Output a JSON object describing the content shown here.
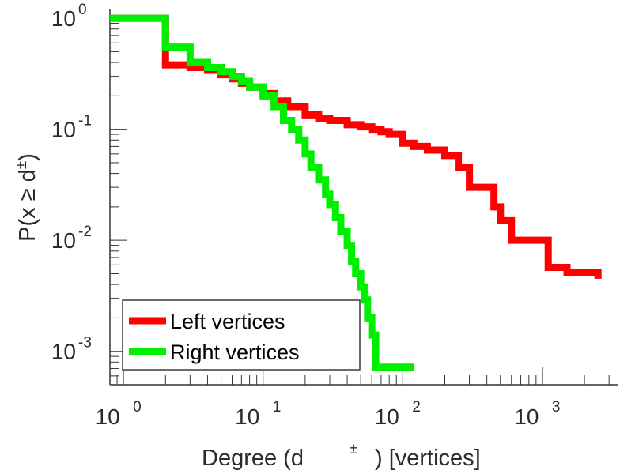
{
  "chart_data": {
    "type": "line",
    "xlabel": "Degree (d  ±) [vertices]",
    "ylabel": "P(x ≥ d±)",
    "xscale": "log",
    "yscale": "log",
    "xlim": [
      0.8,
      3500
    ],
    "ylim": [
      0.0005,
      1.2
    ],
    "grid": false,
    "legend_position": "bottom-left",
    "x_ticks": [
      {
        "base": "10",
        "exp": "0"
      },
      {
        "base": "10",
        "exp": "1"
      },
      {
        "base": "10",
        "exp": "2"
      },
      {
        "base": "10",
        "exp": "3"
      }
    ],
    "y_ticks": [
      {
        "base": "10",
        "exp": "0"
      },
      {
        "base": "10",
        "exp": "-1"
      },
      {
        "base": "10",
        "exp": "-2"
      },
      {
        "base": "10",
        "exp": "-3"
      }
    ],
    "series": [
      {
        "name": "Left vertices",
        "color": "#ff0000",
        "x": [
          1,
          2,
          3,
          4,
          5,
          6,
          7,
          8,
          10,
          12,
          15,
          20,
          25,
          30,
          40,
          50,
          60,
          70,
          80,
          100,
          120,
          150,
          200,
          250,
          300,
          450,
          500,
          600,
          1100,
          1500,
          2500
        ],
        "y": [
          1.0,
          0.38,
          0.36,
          0.34,
          0.31,
          0.285,
          0.26,
          0.24,
          0.21,
          0.18,
          0.16,
          0.135,
          0.125,
          0.12,
          0.11,
          0.105,
          0.1,
          0.095,
          0.09,
          0.075,
          0.07,
          0.065,
          0.058,
          0.045,
          0.03,
          0.02,
          0.015,
          0.01,
          0.0057,
          0.0051,
          0.0045
        ]
      },
      {
        "name": "Right vertices",
        "color": "#00ee00",
        "x": [
          1,
          2,
          3,
          4,
          5,
          6,
          7,
          8,
          10,
          12,
          14,
          16,
          18,
          20,
          22,
          25,
          28,
          30,
          33,
          36,
          40,
          43,
          46,
          50,
          53,
          56,
          60,
          64,
          120
        ],
        "y": [
          1.0,
          0.55,
          0.4,
          0.36,
          0.33,
          0.3,
          0.27,
          0.24,
          0.2,
          0.16,
          0.12,
          0.1,
          0.08,
          0.06,
          0.045,
          0.035,
          0.026,
          0.021,
          0.016,
          0.012,
          0.009,
          0.0065,
          0.005,
          0.0038,
          0.0029,
          0.002,
          0.0014,
          0.00072,
          0.00072
        ]
      }
    ]
  }
}
